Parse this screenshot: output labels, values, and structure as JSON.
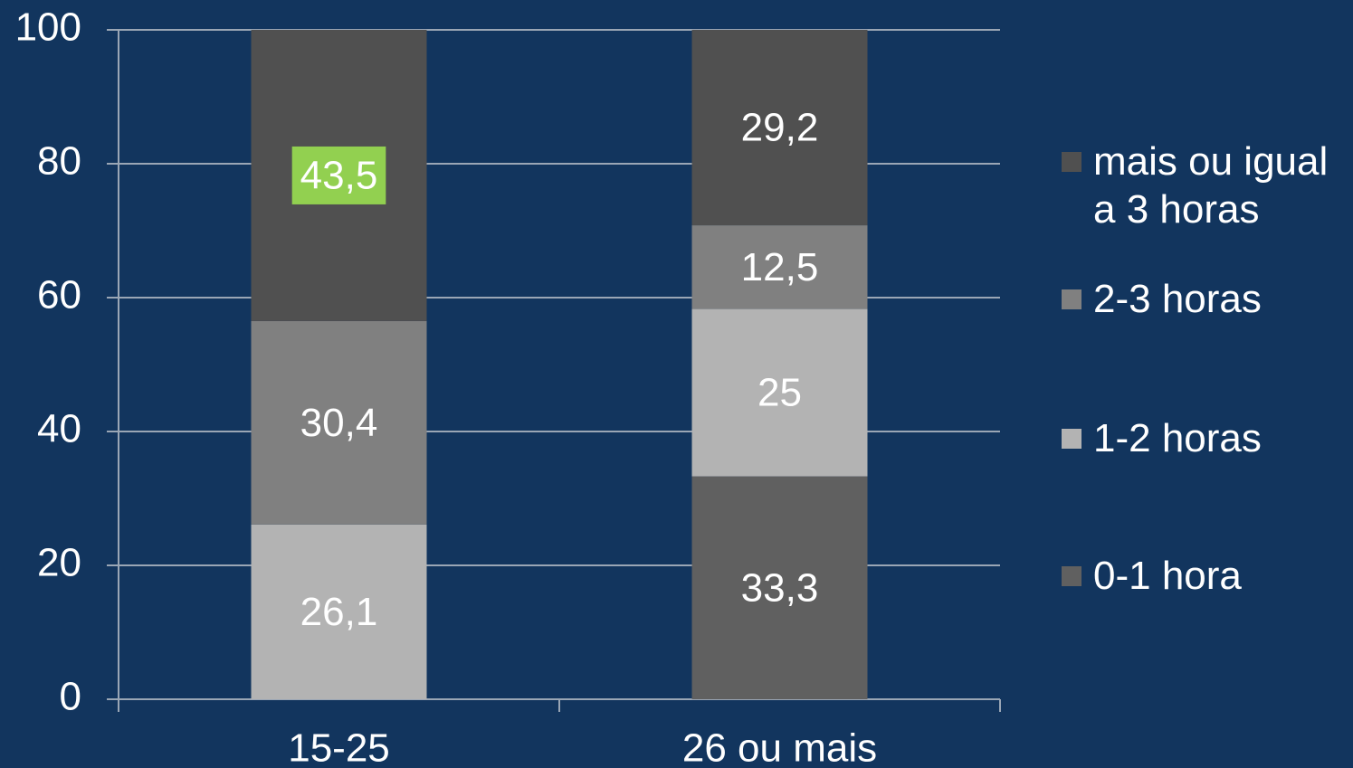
{
  "chart_data": {
    "type": "stacked_bar",
    "categories": [
      "15-25",
      "26 ou mais"
    ],
    "series": [
      {
        "name": "0-1 hora",
        "color": "#606060",
        "values": [
          null,
          33.3
        ],
        "value_labels": [
          null,
          "33,3"
        ]
      },
      {
        "name": "1-2 horas",
        "color": "#b3b3b3",
        "values": [
          26.1,
          25
        ],
        "value_labels": [
          "26,1",
          "25"
        ]
      },
      {
        "name": "2-3 horas",
        "color": "#808080",
        "values": [
          30.4,
          12.5
        ],
        "value_labels": [
          "30,4",
          "12,5"
        ]
      },
      {
        "name": "mais ou igual a 3 horas",
        "color": "#505050",
        "values": [
          43.5,
          29.2
        ],
        "value_labels": [
          "43,5",
          "29,2"
        ],
        "label_backgrounds": [
          "#92d050",
          null
        ]
      }
    ],
    "ylim": [
      0,
      100
    ],
    "yticks": [
      0,
      20,
      40,
      60,
      80,
      100
    ],
    "grid": true,
    "legend": "right"
  }
}
